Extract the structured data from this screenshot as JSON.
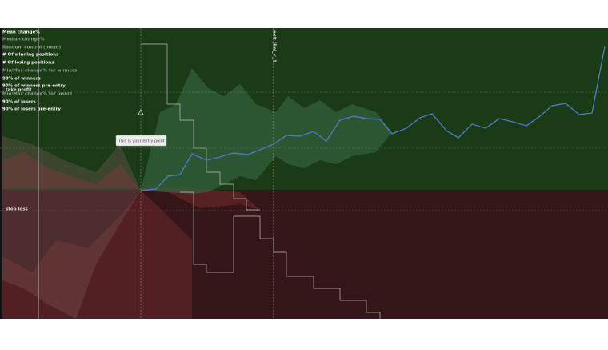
{
  "legend": {
    "items": [
      "Mean change%",
      "Median change%",
      "Random control (mean)",
      "# Of winning positions",
      "# Of losing positions",
      "Min/Max change% for winners",
      "90% of winners",
      "90% of winners pre-entry",
      "Min/Max change% for losers",
      "90% of losers",
      "90% of losers pre-entry"
    ]
  },
  "levels": {
    "take_profit": "take profit",
    "stop_loss": "stop loss"
  },
  "exit_marker": "exit (Pnl_<_1",
  "tooltip": "This is your entry point"
}
